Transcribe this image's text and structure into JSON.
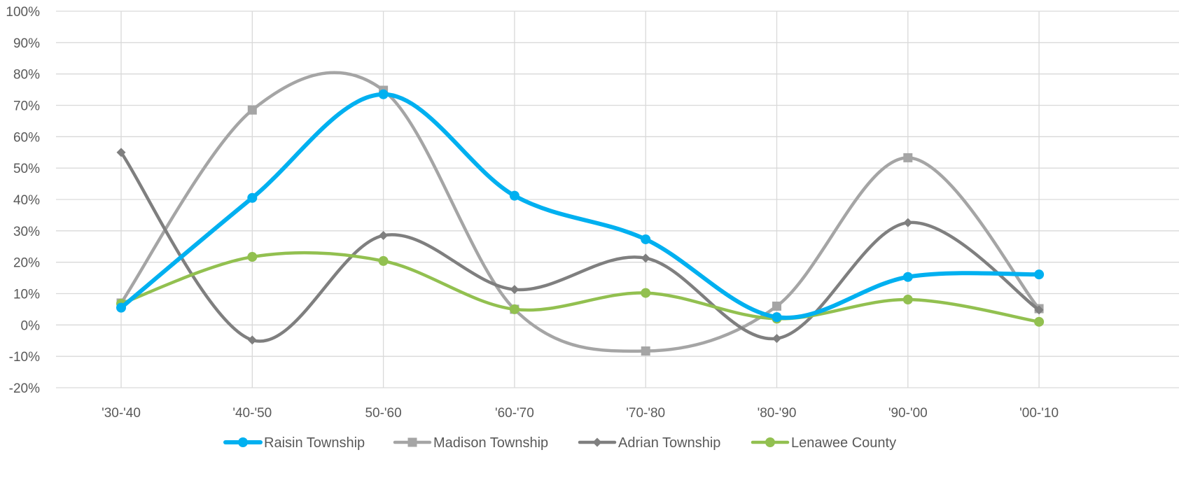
{
  "chart_data": {
    "type": "line",
    "smooth": true,
    "categories": [
      "'30-'40",
      "'40-'50",
      "50-'60",
      "'60-'70",
      "'70-'80",
      "'80-'90",
      "'90-'00",
      "'00-'10"
    ],
    "y_ticks": [
      "-20%",
      "-10%",
      "0%",
      "10%",
      "20%",
      "30%",
      "40%",
      "50%",
      "60%",
      "70%",
      "80%",
      "90%",
      "100%"
    ],
    "ylim": [
      -20,
      100
    ],
    "y_unit": "percent",
    "grid": true,
    "legend_position": "bottom",
    "series": [
      {
        "name": "Raisin Township",
        "color": "#00B0F0",
        "marker": "circle",
        "values": [
          5.5,
          40.5,
          73.5,
          41.2,
          27.3,
          2.5,
          15.3,
          16.1
        ]
      },
      {
        "name": "Madison Township",
        "color": "#A5A5A5",
        "marker": "square",
        "values": [
          7.0,
          68.5,
          74.8,
          5.0,
          -8.3,
          6.0,
          53.3,
          5.2
        ]
      },
      {
        "name": "Adrian Township",
        "color": "#7F7F7F",
        "marker": "diamond",
        "values": [
          55.0,
          -4.8,
          28.5,
          11.3,
          21.3,
          -4.3,
          32.6,
          4.8
        ]
      },
      {
        "name": "Lenawee County",
        "color": "#92C050",
        "marker": "circle",
        "values": [
          6.8,
          21.7,
          20.4,
          5.0,
          10.2,
          2.0,
          8.1,
          1.0
        ]
      }
    ]
  }
}
